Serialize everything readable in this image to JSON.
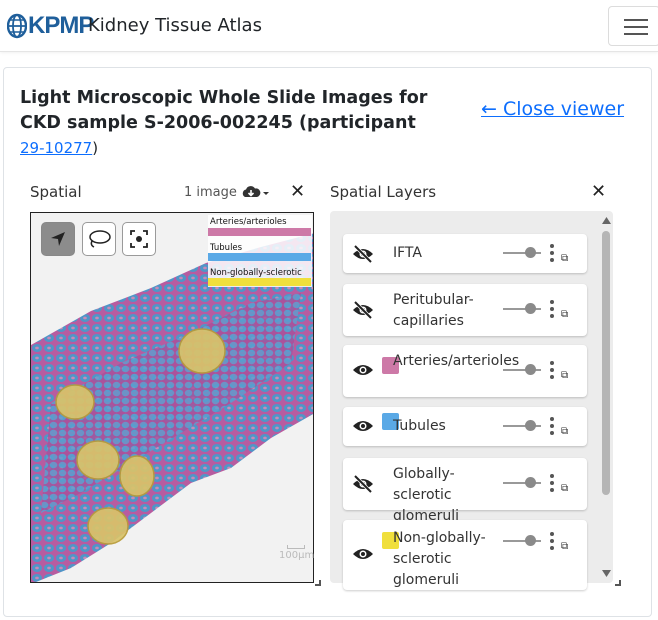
{
  "navbar": {
    "logo_text": "KPMP",
    "title": "Kidney Tissue Atlas"
  },
  "page": {
    "title_line1": "Light Microscopic Whole Slide Images for",
    "title_line2": "CKD sample S-2006-002245 (participant",
    "participant_link": "29-10277",
    "title_suffix": ")",
    "close_viewer": "← Close viewer"
  },
  "spatial": {
    "title": "Spatial",
    "image_count": "1 image",
    "legend": [
      {
        "label": "Arteries/arterioles",
        "color": "#cd79a7"
      },
      {
        "label": "Tubules",
        "color": "#5aa9e6"
      },
      {
        "label": "Non-globally-sclerotic",
        "color": "#f0df3c"
      }
    ],
    "scale_label": "100µm"
  },
  "layers_panel": {
    "title": "Spatial Layers",
    "layers": [
      {
        "name": "IFTA",
        "visible": false,
        "color": ""
      },
      {
        "name": "Peritubular-capillaries",
        "visible": false,
        "color": ""
      },
      {
        "name": "Arteries/arterioles",
        "visible": true,
        "color": "#cd79a7"
      },
      {
        "name": "Tubules",
        "visible": true,
        "color": "#5aa9e6"
      },
      {
        "name": "Globally-sclerotic glomeruli",
        "visible": false,
        "color": ""
      },
      {
        "name": "Non-globally-sclerotic glomeruli",
        "visible": true,
        "color": "#f0df3c"
      }
    ]
  },
  "colors": {
    "link": "#0d6efd",
    "logo": "#1f5f9b",
    "tubules": "#5aa9e6",
    "arteries": "#cd79a7",
    "glomeruli": "#f0df3c"
  }
}
